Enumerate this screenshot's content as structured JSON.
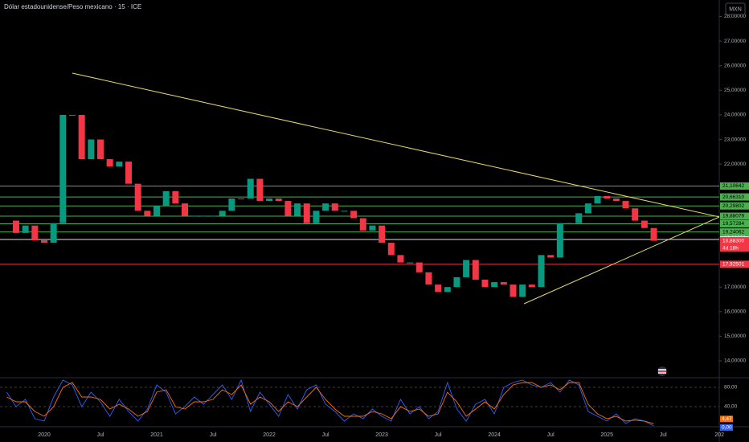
{
  "chart_data": {
    "type": "candlestick",
    "title": "Dólar estadounidense/Peso mexicano · 15 · ICE",
    "currency": "MXN",
    "categories": [
      null,
      null,
      null,
      null,
      "2020",
      null,
      null,
      null,
      null,
      null,
      "Jul",
      null,
      null,
      null,
      null,
      null,
      "2021",
      null,
      null,
      null,
      null,
      null,
      "Jul",
      null,
      null,
      null,
      null,
      null,
      "2022",
      null,
      null,
      null,
      null,
      null,
      "Jul",
      null,
      null,
      null,
      null,
      null,
      "2023",
      null,
      null,
      null,
      null,
      null,
      "Jul",
      null,
      null,
      null,
      null,
      null,
      "2024",
      null,
      null,
      null,
      null,
      null,
      "Jul",
      null,
      null,
      null,
      null,
      null,
      "2025",
      null,
      null,
      null,
      null,
      null,
      "Jul",
      null,
      null,
      null,
      null,
      null,
      "202"
    ],
    "values": [
      19.7,
      19.2,
      19.5,
      18.9,
      18.8,
      19.6,
      24.0,
      24.0,
      22.2,
      23.0,
      22.2,
      21.9,
      22.1,
      21.2,
      20.1,
      19.9,
      20.3,
      20.9,
      20.4,
      19.9,
      19.9,
      19.9,
      19.9,
      20.1,
      20.6,
      20.6,
      21.4,
      20.5,
      20.6,
      20.5,
      19.9,
      20.4,
      19.6,
      20.1,
      20.4,
      20.1,
      20.1,
      19.8,
      19.3,
      19.5,
      18.8,
      18.3,
      18.0,
      18.0,
      17.6,
      17.1,
      16.8,
      17.0,
      17.4,
      18.1,
      17.3,
      17.0,
      17.2,
      17.1,
      16.6,
      17.1,
      17.0,
      18.3,
      18.2,
      19.6,
      19.6,
      20.0,
      20.4,
      20.7,
      20.6,
      20.5,
      20.2,
      19.7,
      19.4,
      18.883,
      null,
      null,
      null,
      null,
      null,
      null,
      null
    ],
    "last_price_label": "18,88300",
    "countdown": "4d 18h",
    "up_color": "#089981",
    "down_color": "#f23645",
    "ylim": [
      13.38,
      28.67
    ],
    "yticks": [
      {
        "value": 14,
        "label": "14,00000"
      },
      {
        "value": 15,
        "label": "15,00000"
      },
      {
        "value": 16,
        "label": "16,00000"
      },
      {
        "value": 17,
        "label": "17,00000"
      },
      {
        "value": 19,
        "label": "19,00000"
      },
      {
        "value": 22,
        "label": "22,00000"
      },
      {
        "value": 23,
        "label": "23,00000"
      },
      {
        "value": 24,
        "label": "24,00000"
      },
      {
        "value": 25,
        "label": "25,00000"
      },
      {
        "value": 26,
        "label": "26,00000"
      },
      {
        "value": 27,
        "label": "27,00000"
      },
      {
        "value": 28,
        "label": "28,00000"
      }
    ],
    "levels": [
      {
        "value": 21.10642,
        "label": "21,10642",
        "color": "#4caf50"
      },
      {
        "value": 20.6631,
        "label": "20,66310",
        "color": "#4caf50"
      },
      {
        "value": 20.29802,
        "label": "20,29802",
        "color": "#4caf50"
      },
      {
        "value": 19.88079,
        "label": "19,88079",
        "color": "#4caf50"
      },
      {
        "value": 19.57284,
        "label": "19,57284",
        "color": "#4caf50"
      },
      {
        "value": 19.24062,
        "label": "19,24062",
        "color": "#4caf50"
      },
      {
        "value": 18.93472,
        "label": "18,93472",
        "color": "#e0e0e0"
      },
      {
        "value": 17.92501,
        "label": "17,92501",
        "color": "#f23645"
      }
    ],
    "oscillator": {
      "ylim": [
        0,
        100
      ],
      "yticks": [
        {
          "value": 80,
          "label": "80,00"
        },
        {
          "value": 40,
          "label": "40,00"
        }
      ],
      "series": [
        {
          "color": "#2962ff",
          "last_label": "0,00",
          "values": [
            70,
            40,
            55,
            15,
            10,
            60,
            95,
            85,
            40,
            70,
            50,
            20,
            55,
            30,
            10,
            35,
            85,
            70,
            25,
            40,
            60,
            45,
            65,
            85,
            55,
            95,
            30,
            70,
            45,
            20,
            65,
            35,
            75,
            85,
            45,
            30,
            10,
            25,
            15,
            35,
            20,
            10,
            55,
            25,
            40,
            15,
            30,
            90,
            35,
            10,
            45,
            55,
            25,
            80,
            90,
            95,
            85,
            80,
            90,
            70,
            95,
            85,
            30,
            20,
            10,
            25,
            5,
            15,
            10,
            0,
            null,
            null,
            null,
            null,
            null,
            null,
            null
          ]
        },
        {
          "color": "#ff6d00",
          "last_label": "4,47",
          "values": [
            60,
            50,
            50,
            30,
            20,
            40,
            80,
            90,
            60,
            60,
            55,
            35,
            45,
            35,
            20,
            30,
            70,
            75,
            40,
            35,
            50,
            50,
            55,
            75,
            65,
            85,
            45,
            60,
            50,
            30,
            50,
            40,
            60,
            80,
            55,
            35,
            20,
            20,
            20,
            30,
            25,
            15,
            40,
            30,
            35,
            20,
            25,
            70,
            50,
            20,
            35,
            50,
            35,
            65,
            85,
            90,
            90,
            80,
            85,
            75,
            90,
            90,
            45,
            25,
            15,
            20,
            10,
            12,
            10,
            4.47,
            null,
            null,
            null,
            null,
            null,
            null,
            null
          ]
        }
      ]
    }
  }
}
